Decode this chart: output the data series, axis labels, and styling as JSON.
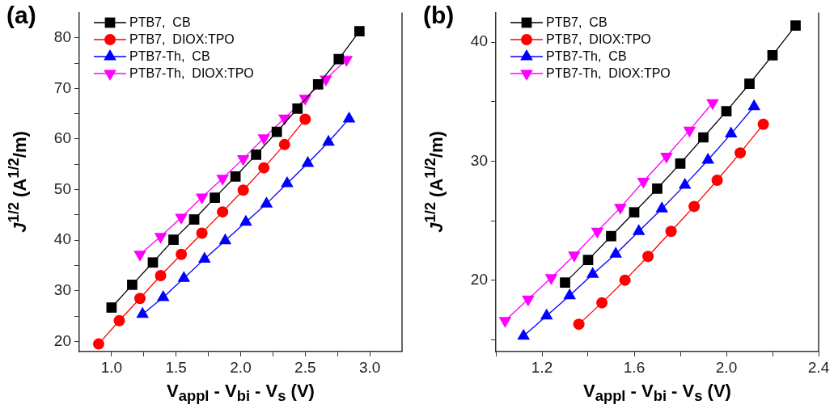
{
  "chart_data": [
    {
      "type": "line",
      "title": "(a)",
      "xlabel": "V$_{appl}$ - V$_{bi}$ - V$_{s}$ (V)",
      "ylabel": "J$^{1/2}$ (A$^{1/2}$/m)",
      "legend": "top left",
      "xlim": [
        0.75,
        3.25
      ],
      "xticks": [
        {
          "value": 1,
          "label": "1.0"
        },
        {
          "value": 1.25,
          "label": null
        },
        1.5,
        {
          "value": 1.75,
          "label": null
        },
        {
          "value": 2,
          "label": "2.0"
        },
        {
          "value": 2.25,
          "label": null
        },
        2.5,
        {
          "value": 2.75,
          "label": null
        },
        {
          "value": 3,
          "label": "3.0"
        }
      ],
      "ylim": [
        18,
        85
      ],
      "yticks": [
        20,
        {
          "value": 25,
          "label": null
        },
        30,
        {
          "value": 35,
          "label": null
        },
        40,
        {
          "value": 45,
          "label": null
        },
        50,
        {
          "value": 55,
          "label": null
        },
        60,
        {
          "value": 65,
          "label": null
        },
        70,
        {
          "value": 75,
          "label": null
        },
        80
      ],
      "series": [
        {
          "name": "PTB7,  CB",
          "color": "#000000",
          "marker": "square",
          "x": [
            1.0,
            1.16,
            1.32,
            1.48,
            1.64,
            1.8,
            1.96,
            2.12,
            2.28,
            2.44,
            2.6,
            2.76,
            2.92
          ],
          "values": [
            26.7,
            31.2,
            35.6,
            40.1,
            44.1,
            48.4,
            52.6,
            56.9,
            61.4,
            66.0,
            70.8,
            75.8,
            81.3
          ]
        },
        {
          "name": "PTB7,  DIOX:TPO",
          "color": "#ff0000",
          "marker": "circle",
          "x": [
            0.9,
            1.06,
            1.22,
            1.38,
            1.54,
            1.7,
            1.86,
            2.02,
            2.18,
            2.34,
            2.5
          ],
          "values": [
            19.5,
            24.1,
            28.5,
            33.0,
            37.2,
            41.4,
            45.6,
            49.9,
            54.3,
            58.9,
            63.9
          ]
        },
        {
          "name": "PTB7-Th,  CB",
          "color": "#0000ff",
          "marker": "triangle",
          "x": [
            1.24,
            1.4,
            1.56,
            1.72,
            1.88,
            2.04,
            2.2,
            2.36,
            2.52,
            2.68,
            2.84
          ],
          "values": [
            25.4,
            28.7,
            32.5,
            36.3,
            39.9,
            43.6,
            47.2,
            51.2,
            55.2,
            59.4,
            64.0
          ]
        },
        {
          "name": "PTB7-Th,  DIOX:TPO",
          "color": "#ff00ff",
          "marker": "triangle-down",
          "x": [
            1.22,
            1.38,
            1.54,
            1.7,
            1.86,
            2.02,
            2.18,
            2.34,
            2.5,
            2.66,
            2.82
          ],
          "values": [
            37.2,
            40.7,
            44.5,
            48.5,
            52.2,
            56.1,
            60.2,
            64.1,
            68.0,
            71.8,
            75.7
          ]
        }
      ]
    },
    {
      "type": "line",
      "title": "(b)",
      "xlabel": "V$_{appl}$ - V$_{bi}$ - V$_{s}$ (V)",
      "ylabel": "J$^{1/2}$ (A$^{1/2}$/m)",
      "legend": "top left",
      "xlim": [
        1.0,
        2.4
      ],
      "xticks": [
        {
          "value": 1.0,
          "label": null
        },
        1.2,
        {
          "value": 1.4,
          "label": null
        },
        1.6,
        {
          "value": 1.8,
          "label": null
        },
        {
          "value": 2,
          "label": "2.0"
        },
        {
          "value": 2.2,
          "label": null
        },
        2.4
      ],
      "ylim": [
        14,
        42.5
      ],
      "yticks": [
        {
          "value": 15,
          "label": null
        },
        20,
        {
          "value": 25,
          "label": null
        },
        30,
        {
          "value": 35,
          "label": null
        },
        40
      ],
      "series": [
        {
          "name": "PTB7,  CB",
          "color": "#000000",
          "marker": "square",
          "x": [
            1.3,
            1.4,
            1.5,
            1.6,
            1.7,
            1.8,
            1.9,
            2.0,
            2.1,
            2.2,
            2.3
          ],
          "values": [
            19.8,
            21.7,
            23.7,
            25.7,
            27.7,
            29.8,
            32.0,
            34.2,
            36.5,
            38.9,
            41.4
          ]
        },
        {
          "name": "PTB7,  DIOX:TPO",
          "color": "#ff0000",
          "marker": "circle",
          "x": [
            1.36,
            1.46,
            1.56,
            1.66,
            1.76,
            1.86,
            1.96,
            2.06,
            2.16
          ],
          "values": [
            16.3,
            18.1,
            20.0,
            22.0,
            24.1,
            26.2,
            28.4,
            30.7,
            33.1
          ]
        },
        {
          "name": "PTB7-Th,  CB",
          "color": "#0000ff",
          "marker": "triangle",
          "x": [
            1.12,
            1.22,
            1.32,
            1.42,
            1.52,
            1.62,
            1.72,
            1.82,
            1.92,
            2.02,
            2.12
          ],
          "values": [
            15.3,
            17.0,
            18.7,
            20.5,
            22.2,
            24.1,
            26.0,
            28.0,
            30.1,
            32.3,
            34.6
          ]
        },
        {
          "name": "PTB7-Th,  DIOX:TPO",
          "color": "#ff00ff",
          "marker": "triangle-down",
          "x": [
            1.04,
            1.14,
            1.24,
            1.34,
            1.44,
            1.54,
            1.64,
            1.74,
            1.84,
            1.94
          ],
          "values": [
            16.6,
            18.4,
            20.2,
            22.1,
            24.1,
            26.1,
            28.3,
            30.4,
            32.6,
            34.9
          ]
        }
      ]
    }
  ]
}
